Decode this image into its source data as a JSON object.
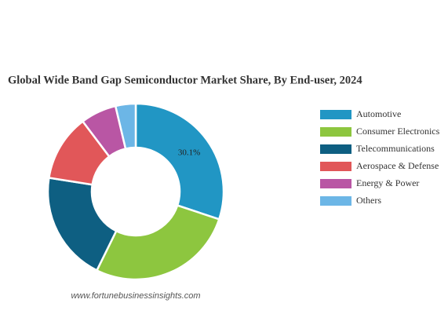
{
  "chart_data": {
    "type": "donut",
    "title": "Global Wide Band Gap Semiconductor Market Share, By End-user, 2024",
    "categories": [
      "Automotive",
      "Consumer Electronics",
      "Telecommunications",
      "Aerospace & Defense",
      "Energy & Power",
      "Others"
    ],
    "values": [
      30.1,
      27.2,
      20.2,
      12.2,
      6.6,
      3.7
    ],
    "value_labels": [
      "30.1%",
      null,
      null,
      null,
      null,
      null
    ],
    "colors": [
      "#2196c4",
      "#8dc63f",
      "#0e5f82",
      "#e15759",
      "#b956a4",
      "#6cb6e6"
    ],
    "legend": "right",
    "source": "www.fortunebusinessinsights.com"
  }
}
